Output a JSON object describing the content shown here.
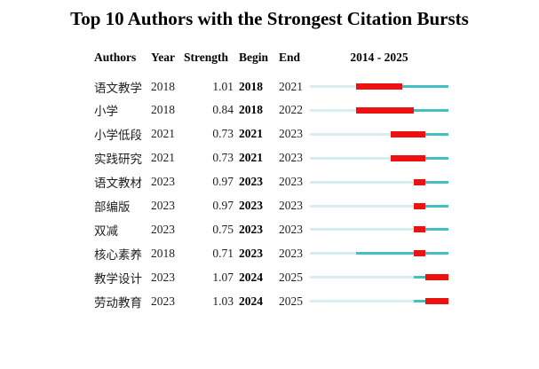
{
  "title": "Top 10 Authors with the Strongest Citation Bursts",
  "header": {
    "authors": "Authors",
    "year": "Year",
    "strength": "Strength",
    "begin": "Begin",
    "end": "End",
    "timeline": "2014 - 2025"
  },
  "chart_data": {
    "type": "table",
    "title": "Top 10 Authors with the Strongest Citation Bursts",
    "columns": [
      "Authors",
      "Year",
      "Strength",
      "Begin",
      "End",
      "2014 - 2025"
    ],
    "timeline_range": {
      "start": 2014,
      "end": 2025
    },
    "colors": {
      "pre_period": "#D8EDED",
      "active_period": "#44BFC4",
      "burst_period": "#EE1111"
    },
    "rows": [
      {
        "author": "语文教学",
        "year": 2018,
        "strength": "1.01",
        "begin": 2018,
        "end": 2021
      },
      {
        "author": "小学",
        "year": 2018,
        "strength": "0.84",
        "begin": 2018,
        "end": 2022
      },
      {
        "author": "小学低段",
        "year": 2021,
        "strength": "0.73",
        "begin": 2021,
        "end": 2023
      },
      {
        "author": "实践研究",
        "year": 2021,
        "strength": "0.73",
        "begin": 2021,
        "end": 2023
      },
      {
        "author": "语文教材",
        "year": 2023,
        "strength": "0.97",
        "begin": 2023,
        "end": 2023
      },
      {
        "author": "部编版",
        "year": 2023,
        "strength": "0.97",
        "begin": 2023,
        "end": 2023
      },
      {
        "author": "双减",
        "year": 2023,
        "strength": "0.75",
        "begin": 2023,
        "end": 2023
      },
      {
        "author": "核心素养",
        "year": 2018,
        "strength": "0.71",
        "begin": 2023,
        "end": 2023
      },
      {
        "author": "教学设计",
        "year": 2023,
        "strength": "1.07",
        "begin": 2024,
        "end": 2025
      },
      {
        "author": "劳动教育",
        "year": 2023,
        "strength": "1.03",
        "begin": 2024,
        "end": 2025
      }
    ]
  }
}
